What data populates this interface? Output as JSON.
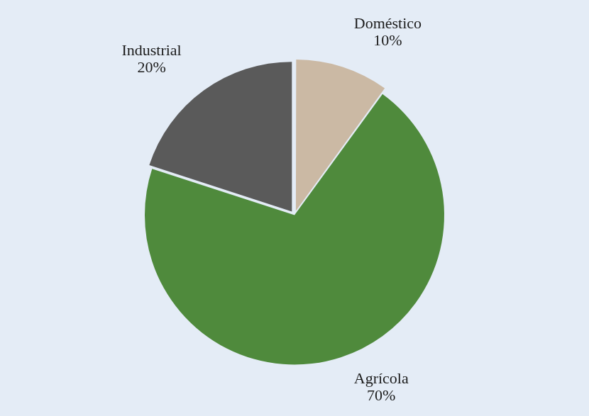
{
  "chart_data": {
    "type": "pie",
    "categories": [
      "Doméstico",
      "Agrícola",
      "Industrial"
    ],
    "values": [
      10,
      70,
      20
    ],
    "value_labels": [
      "10%",
      "70%",
      "20%"
    ],
    "colors": [
      "#cbb9a4",
      "#4f8a3c",
      "#5a5a5a"
    ],
    "data_labels": true
  }
}
